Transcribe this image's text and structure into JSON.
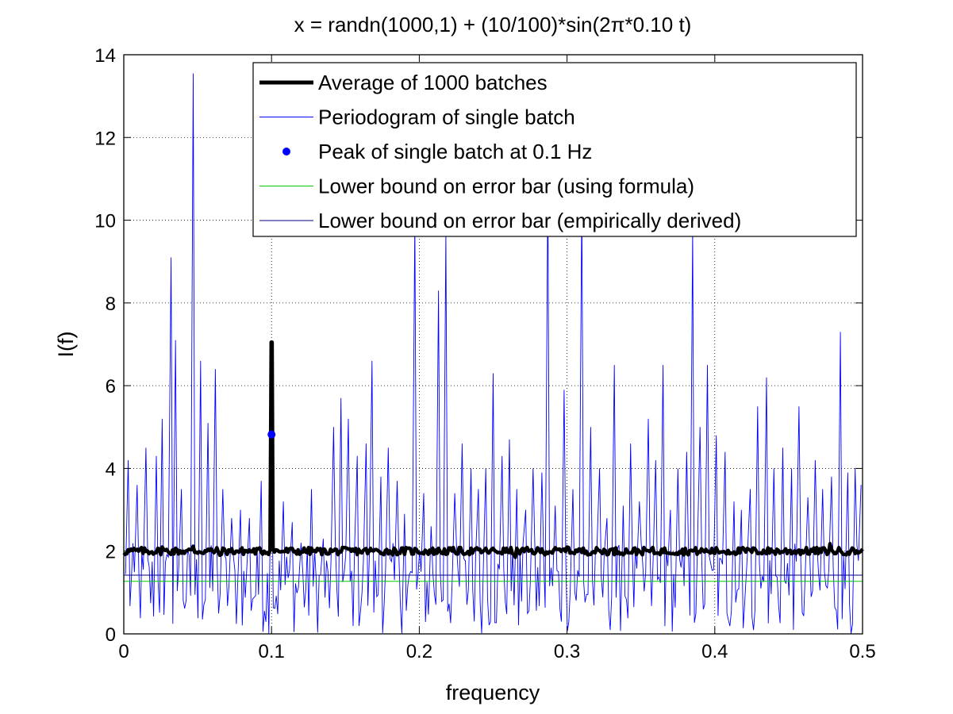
{
  "chart_data": {
    "type": "line",
    "title": "x = randn(1000,1) + (10/100)*sin(2π*0.10 t)",
    "xlabel": "frequency",
    "ylabel": "I(f)",
    "xlim": [
      0,
      0.5
    ],
    "ylim": [
      0,
      14
    ],
    "xticks": [
      0,
      0.1,
      0.2,
      0.3,
      0.4,
      0.5
    ],
    "xtick_labels": [
      "0",
      "0.1",
      "0.2",
      "0.3",
      "0.4",
      "0.5"
    ],
    "yticks": [
      0,
      2,
      4,
      6,
      8,
      10,
      12,
      14
    ],
    "ytick_labels": [
      "0",
      "2",
      "4",
      "6",
      "8",
      "10",
      "12",
      "14"
    ],
    "grid": true,
    "legend_position": "top-right",
    "series": [
      {
        "name": "Average of 1000 batches",
        "color": "#000000",
        "style": "thick-line",
        "level": 2.0,
        "peak_x": 0.1,
        "peak_y": 7.05,
        "notable_points": [
          [
            0.0,
            1.9
          ],
          [
            0.026,
            2.1
          ],
          [
            0.047,
            2.12
          ],
          [
            0.065,
            1.9
          ],
          [
            0.1,
            7.05
          ],
          [
            0.135,
            2.05
          ],
          [
            0.265,
            1.85
          ],
          [
            0.3,
            2.1
          ],
          [
            0.36,
            1.95
          ],
          [
            0.478,
            2.18
          ],
          [
            0.5,
            2.05
          ]
        ]
      },
      {
        "name": "Periodogram of single batch",
        "color": "#0000ff",
        "style": "thin-line",
        "spikes": [
          [
            0.003,
            4.2
          ],
          [
            0.009,
            3.6
          ],
          [
            0.015,
            4.5
          ],
          [
            0.022,
            4.3
          ],
          [
            0.026,
            5.2
          ],
          [
            0.032,
            9.1
          ],
          [
            0.035,
            7.1
          ],
          [
            0.039,
            3.5
          ],
          [
            0.047,
            13.55
          ],
          [
            0.052,
            6.6
          ],
          [
            0.057,
            5.1
          ],
          [
            0.062,
            6.4
          ],
          [
            0.067,
            3.5
          ],
          [
            0.073,
            2.8
          ],
          [
            0.079,
            3.0
          ],
          [
            0.085,
            2.8
          ],
          [
            0.093,
            3.7
          ],
          [
            0.1,
            4.82
          ],
          [
            0.108,
            3.2
          ],
          [
            0.114,
            2.7
          ],
          [
            0.12,
            2.2
          ],
          [
            0.127,
            3.5
          ],
          [
            0.135,
            2.3
          ],
          [
            0.142,
            5.0
          ],
          [
            0.147,
            5.7
          ],
          [
            0.152,
            5.2
          ],
          [
            0.158,
            4.3
          ],
          [
            0.164,
            4.6
          ],
          [
            0.168,
            6.6
          ],
          [
            0.174,
            3.8
          ],
          [
            0.179,
            4.5
          ],
          [
            0.185,
            3.7
          ],
          [
            0.19,
            2.9
          ],
          [
            0.197,
            10.0
          ],
          [
            0.203,
            3.4
          ],
          [
            0.208,
            2.6
          ],
          [
            0.213,
            8.3
          ],
          [
            0.218,
            9.7
          ],
          [
            0.224,
            3.4
          ],
          [
            0.229,
            4.6
          ],
          [
            0.235,
            4.0
          ],
          [
            0.24,
            3.5
          ],
          [
            0.245,
            4.0
          ],
          [
            0.25,
            6.3
          ],
          [
            0.256,
            4.3
          ],
          [
            0.261,
            4.7
          ],
          [
            0.266,
            3.5
          ],
          [
            0.272,
            3.0
          ],
          [
            0.277,
            4.0
          ],
          [
            0.283,
            3.9
          ],
          [
            0.287,
            11.0
          ],
          [
            0.292,
            3.1
          ],
          [
            0.298,
            5.9
          ],
          [
            0.304,
            3.5
          ],
          [
            0.31,
            10.5
          ],
          [
            0.316,
            5.0
          ],
          [
            0.322,
            4.0
          ],
          [
            0.327,
            2.8
          ],
          [
            0.332,
            6.5
          ],
          [
            0.338,
            3.1
          ],
          [
            0.343,
            4.6
          ],
          [
            0.349,
            3.2
          ],
          [
            0.355,
            5.2
          ],
          [
            0.36,
            4.2
          ],
          [
            0.365,
            6.5
          ],
          [
            0.37,
            3.0
          ],
          [
            0.375,
            4.0
          ],
          [
            0.381,
            4.4
          ],
          [
            0.385,
            9.8
          ],
          [
            0.39,
            5.0
          ],
          [
            0.395,
            6.5
          ],
          [
            0.401,
            4.8
          ],
          [
            0.407,
            4.4
          ],
          [
            0.413,
            3.2
          ],
          [
            0.418,
            3.0
          ],
          [
            0.424,
            3.5
          ],
          [
            0.429,
            5.5
          ],
          [
            0.435,
            6.2
          ],
          [
            0.44,
            4.0
          ],
          [
            0.446,
            4.5
          ],
          [
            0.452,
            4.0
          ],
          [
            0.457,
            5.5
          ],
          [
            0.463,
            3.3
          ],
          [
            0.468,
            4.2
          ],
          [
            0.473,
            3.5
          ],
          [
            0.479,
            3.8
          ],
          [
            0.485,
            7.3
          ],
          [
            0.49,
            3.9
          ],
          [
            0.495,
            4.0
          ],
          [
            0.499,
            3.6
          ]
        ]
      },
      {
        "name": "Peak of single batch at 0.1 Hz",
        "color": "#0000ff",
        "style": "marker",
        "x": 0.1,
        "y": 4.82
      },
      {
        "name": "Lower bound on error bar (using formula)",
        "color": "#00cc00",
        "style": "thin-line",
        "level": 1.27
      },
      {
        "name": "Lower bound on error bar (empirically derived)",
        "color": "#000080",
        "style": "thin-line",
        "level": 1.42
      }
    ]
  }
}
